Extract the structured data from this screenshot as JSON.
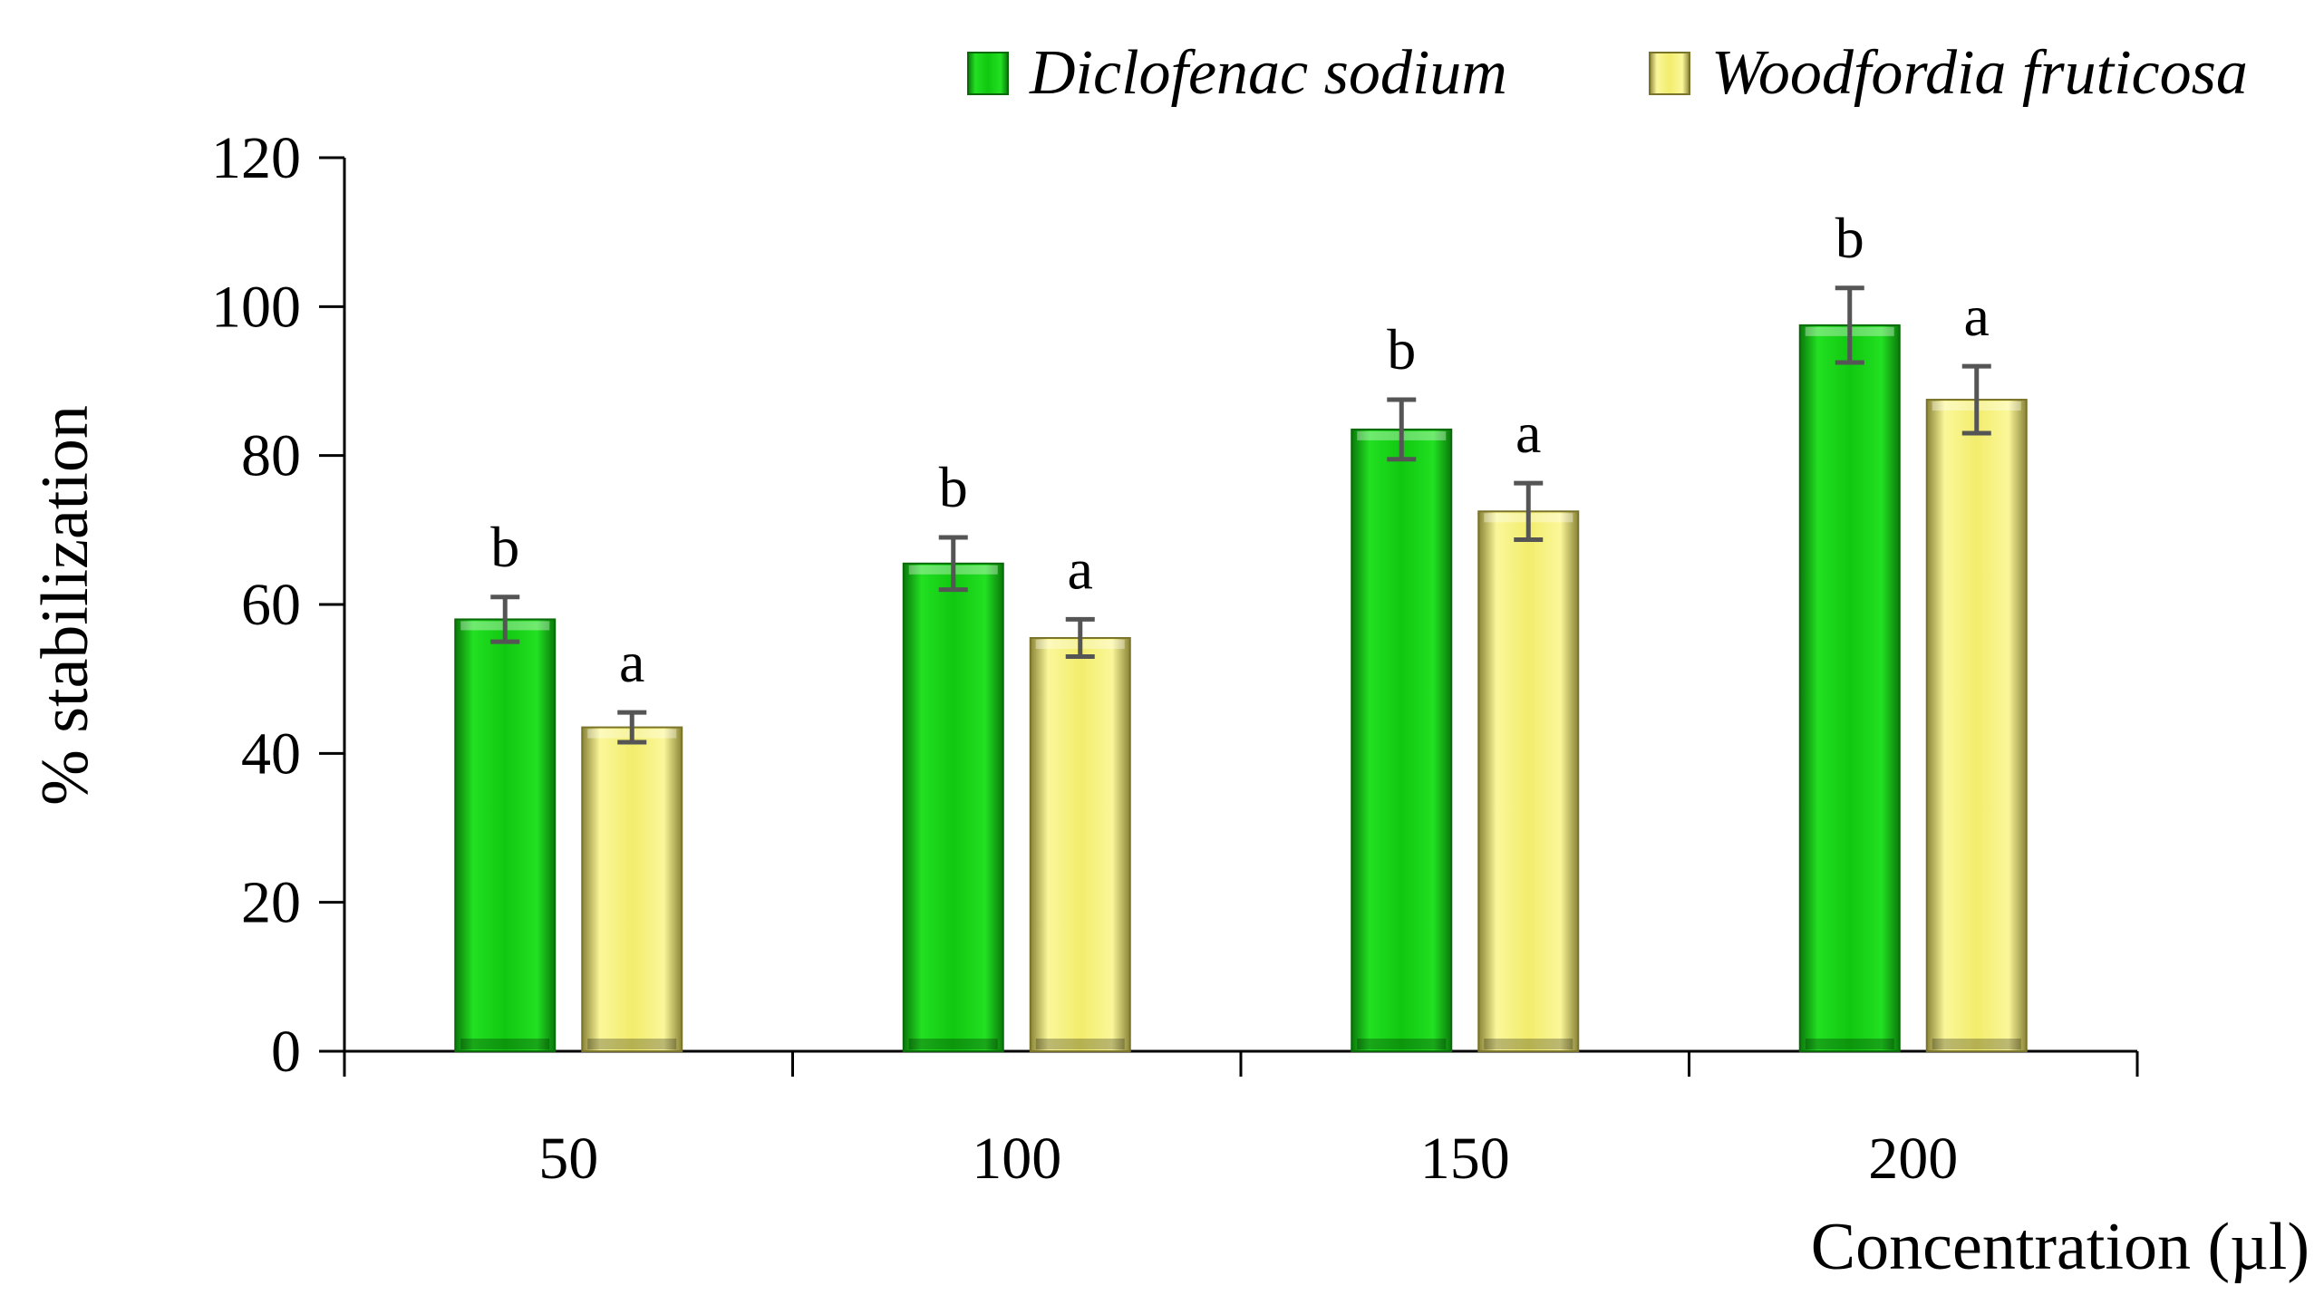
{
  "chart_data": {
    "type": "bar",
    "title": "",
    "xlabel": "Concentration (µl)",
    "ylabel": "% stabilization",
    "ylim": [
      0,
      120
    ],
    "yticks": [
      0,
      20,
      40,
      60,
      80,
      100,
      120
    ],
    "categories": [
      "50",
      "100",
      "150",
      "200"
    ],
    "grid": false,
    "legend_position": "top-right",
    "series": [
      {
        "name": "Diclofenac sodium",
        "color": "#18d418",
        "values": [
          58,
          65.5,
          83.5,
          97.5
        ],
        "errors": [
          3,
          3.5,
          4,
          5
        ],
        "significance": [
          "b",
          "b",
          "b",
          "b"
        ]
      },
      {
        "name": "Woodfordia fruticosa",
        "color": "#f4f07a",
        "values": [
          43.5,
          55.5,
          72.5,
          87.5
        ],
        "errors": [
          2,
          2.5,
          3.8,
          4.5
        ],
        "significance": [
          "a",
          "a",
          "a",
          "a"
        ]
      }
    ]
  }
}
